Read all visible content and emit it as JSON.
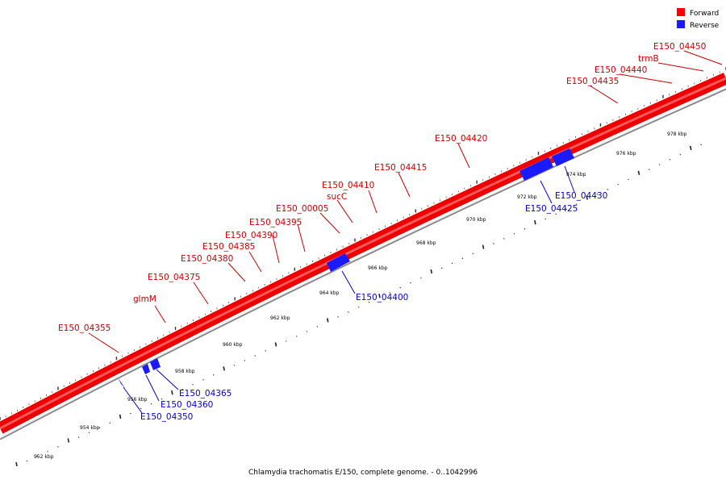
{
  "legend": {
    "forward_label": "Forward",
    "reverse_label": "Reverse",
    "forward_color": "#ff0000",
    "reverse_color": "#1a1aff"
  },
  "caption": "Chlamydia trachomatis E/150, complete genome. - 0..1042996",
  "forward_genes": [
    "E150_04355",
    "glmM",
    "E150_04375",
    "E150_04380",
    "E150_04385",
    "E150_04390",
    "E150_04395",
    "E150_00005",
    "sucC",
    "E150_04410",
    "E150_04415",
    "E150_04420",
    "E150_04435",
    "E150_04440",
    "trmB",
    "E150_04450"
  ],
  "reverse_genes": [
    "E150_04350",
    "E150_04360",
    "E150_04365",
    "E150_04400",
    "E150_04425",
    "E150_04430"
  ],
  "kbp_ticks": [
    "952 kbp",
    "954 kbp",
    "956 kbp",
    "958 kbp",
    "960 kbp",
    "962 kbp",
    "964 kbp",
    "966 kbp",
    "968 kbp",
    "970 kbp",
    "972 kbp",
    "974 kbp",
    "976 kbp",
    "978 kbp"
  ]
}
